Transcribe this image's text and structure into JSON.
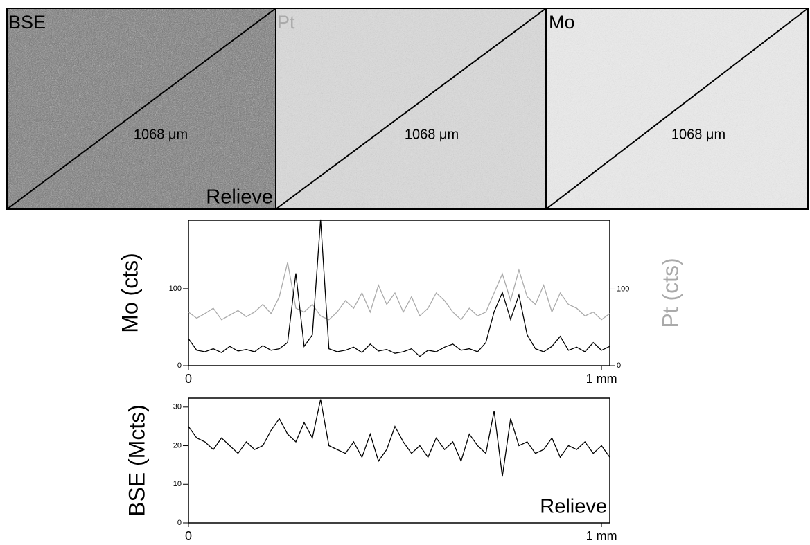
{
  "panels": [
    {
      "label": "BSE",
      "scale": "1068 μm",
      "note": "Relieve"
    },
    {
      "label": "Pt",
      "scale": "1068 μm"
    },
    {
      "label": "Mo",
      "scale": "1068 μm"
    }
  ],
  "chart_data": [
    {
      "type": "line",
      "ylabel": "Mo (cts)",
      "y2label": "Pt (cts)",
      "x": [
        0,
        0.02,
        0.04,
        0.06,
        0.08,
        0.1,
        0.12,
        0.14,
        0.16,
        0.18,
        0.2,
        0.22,
        0.24,
        0.26,
        0.28,
        0.3,
        0.32,
        0.34,
        0.36,
        0.38,
        0.4,
        0.42,
        0.44,
        0.46,
        0.48,
        0.5,
        0.52,
        0.54,
        0.56,
        0.58,
        0.6,
        0.62,
        0.64,
        0.66,
        0.68,
        0.7,
        0.72,
        0.74,
        0.76,
        0.78,
        0.8,
        0.82,
        0.84,
        0.86,
        0.88,
        0.9,
        0.92,
        0.94,
        0.96,
        0.98,
        1,
        1.02
      ],
      "xlim": [
        0,
        1.02
      ],
      "xticks": [
        0,
        {
          "value": 1,
          "label": "1 mm"
        }
      ],
      "ylim": [
        0,
        189
      ],
      "yticks": [
        0,
        100
      ],
      "y2lim": [
        0,
        190
      ],
      "y2ticks": [
        0,
        100
      ],
      "series": [
        {
          "color": "#000000",
          "values": [
            35,
            20,
            18,
            22,
            17,
            25,
            19,
            21,
            18,
            26,
            20,
            22,
            30,
            120,
            25,
            40,
            190,
            22,
            18,
            20,
            24,
            17,
            28,
            19,
            21,
            16,
            18,
            22,
            12,
            20,
            18,
            24,
            28,
            20,
            22,
            18,
            30,
            70,
            95,
            60,
            92,
            40,
            22,
            18,
            25,
            38,
            20,
            24,
            18,
            30,
            20,
            25
          ]
        },
        {
          "color": "#aaaaaa",
          "axis": "y2",
          "values": [
            70,
            62,
            68,
            75,
            60,
            66,
            72,
            64,
            70,
            80,
            68,
            90,
            135,
            75,
            70,
            80,
            65,
            60,
            70,
            85,
            75,
            95,
            70,
            105,
            80,
            95,
            70,
            90,
            65,
            75,
            95,
            85,
            70,
            60,
            75,
            65,
            70,
            95,
            120,
            85,
            125,
            90,
            80,
            105,
            70,
            95,
            80,
            75,
            65,
            70,
            60,
            68
          ]
        }
      ]
    },
    {
      "type": "line",
      "ylabel": "BSE (Mcts)",
      "annotation": "Relieve",
      "x": [
        0,
        0.02,
        0.04,
        0.06,
        0.08,
        0.1,
        0.12,
        0.14,
        0.16,
        0.18,
        0.2,
        0.22,
        0.24,
        0.26,
        0.28,
        0.3,
        0.32,
        0.34,
        0.36,
        0.38,
        0.4,
        0.42,
        0.44,
        0.46,
        0.48,
        0.5,
        0.52,
        0.54,
        0.56,
        0.58,
        0.6,
        0.62,
        0.64,
        0.66,
        0.68,
        0.7,
        0.72,
        0.74,
        0.76,
        0.78,
        0.8,
        0.82,
        0.84,
        0.86,
        0.88,
        0.9,
        0.92,
        0.94,
        0.96,
        0.98,
        1,
        1.02
      ],
      "xlim": [
        0,
        1.02
      ],
      "xticks": [
        0,
        {
          "value": 1,
          "label": "1 mm"
        }
      ],
      "ylim": [
        0,
        32.3
      ],
      "yticks": [
        0,
        10,
        20,
        30
      ],
      "series": [
        {
          "color": "#000000",
          "values": [
            25,
            22,
            21,
            19,
            22,
            20,
            18,
            21,
            19,
            20,
            24,
            27,
            23,
            21,
            26,
            22,
            32,
            20,
            19,
            18,
            21,
            17,
            23,
            16,
            19,
            25,
            21,
            18,
            20,
            17,
            22,
            19,
            21,
            16,
            23,
            20,
            18,
            29,
            12,
            27,
            20,
            21,
            18,
            19,
            22,
            17,
            20,
            19,
            21,
            18,
            20,
            17
          ]
        }
      ]
    }
  ]
}
